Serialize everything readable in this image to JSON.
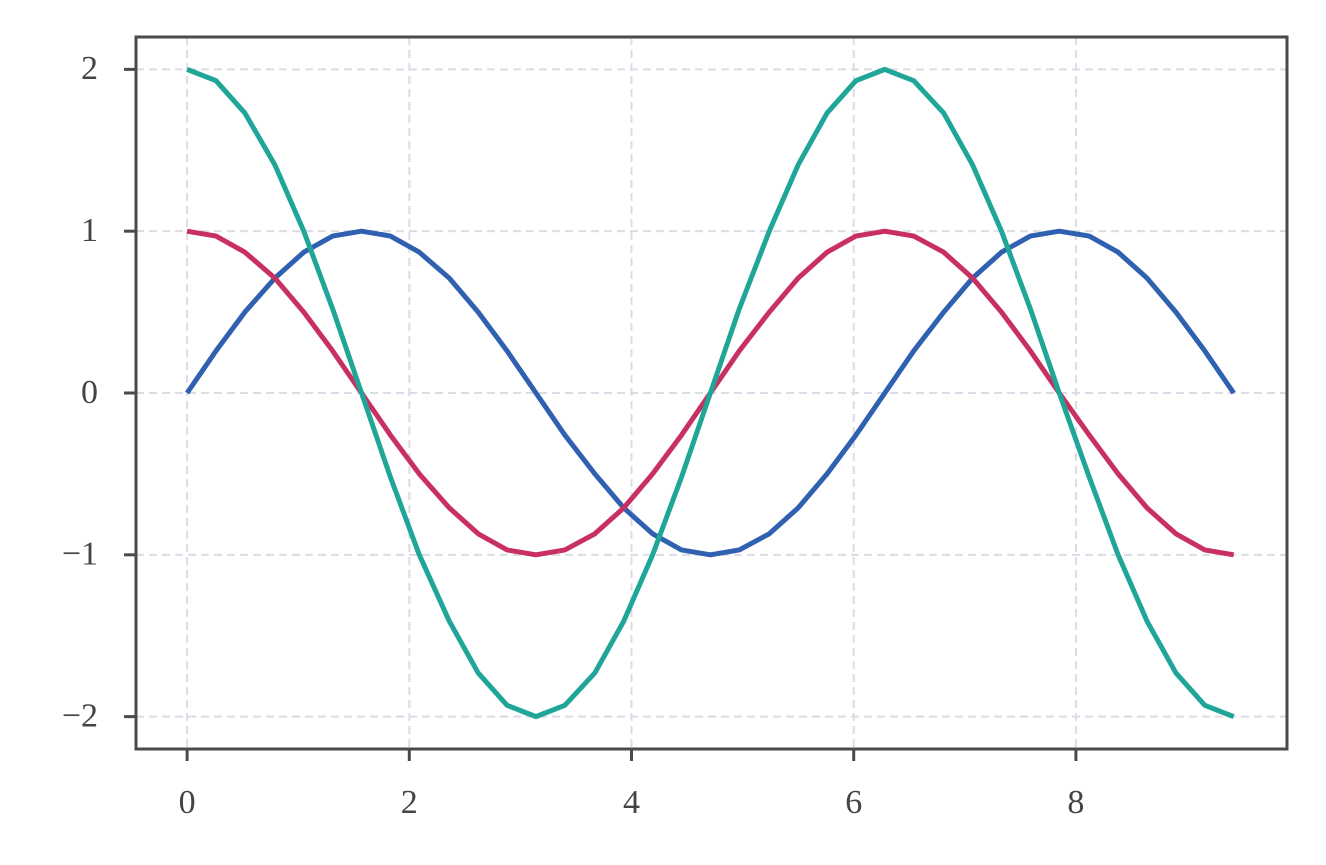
{
  "chart_data": {
    "type": "line",
    "x": [
      0,
      0.26,
      0.52,
      0.79,
      1.05,
      1.31,
      1.57,
      1.83,
      2.09,
      2.36,
      2.62,
      2.88,
      3.14,
      3.4,
      3.67,
      3.93,
      4.19,
      4.45,
      4.71,
      4.97,
      5.24,
      5.5,
      5.76,
      6.02,
      6.28,
      6.54,
      6.81,
      7.07,
      7.33,
      7.59,
      7.85,
      8.12,
      8.38,
      8.64,
      8.9,
      9.16,
      9.42
    ],
    "series": [
      {
        "color": "#3060b0",
        "values": [
          0,
          0.26,
          0.5,
          0.71,
          0.87,
          0.97,
          1,
          0.97,
          0.87,
          0.71,
          0.5,
          0.26,
          0,
          -0.26,
          -0.5,
          -0.71,
          -0.87,
          -0.97,
          -1,
          -0.97,
          -0.87,
          -0.71,
          -0.5,
          -0.26,
          0,
          0.26,
          0.5,
          0.71,
          0.87,
          0.97,
          1,
          0.97,
          0.87,
          0.71,
          0.5,
          0.26,
          0
        ]
      },
      {
        "color": "#c83063",
        "values": [
          1,
          0.97,
          0.87,
          0.71,
          0.5,
          0.26,
          0,
          -0.26,
          -0.5,
          -0.71,
          -0.87,
          -0.97,
          -1,
          -0.97,
          -0.87,
          -0.71,
          -0.5,
          -0.26,
          0,
          0.26,
          0.5,
          0.71,
          0.87,
          0.97,
          1,
          0.97,
          0.87,
          0.71,
          0.5,
          0.26,
          0,
          -0.26,
          -0.5,
          -0.71,
          -0.87,
          -0.97,
          -1
        ]
      },
      {
        "color": "#1fa698",
        "values": [
          2,
          1.93,
          1.73,
          1.41,
          1,
          0.52,
          0,
          -0.52,
          -1,
          -1.41,
          -1.73,
          -1.93,
          -2,
          -1.93,
          -1.73,
          -1.41,
          -1,
          -0.52,
          0,
          0.52,
          1,
          1.41,
          1.73,
          1.93,
          2,
          1.93,
          1.73,
          1.41,
          1,
          0.52,
          0,
          -0.52,
          -1,
          -1.41,
          -1.73,
          -1.93,
          -2
        ]
      }
    ],
    "xlim": [
      -0.46,
      9.9
    ],
    "xticks": [
      0,
      2,
      4,
      6,
      8
    ],
    "ylim": [
      -2.2,
      2.2
    ],
    "yticks": [
      {
        "value": -2,
        "label": "−2"
      },
      {
        "value": -1,
        "label": "−1"
      },
      0,
      1,
      2
    ],
    "grid": true
  }
}
